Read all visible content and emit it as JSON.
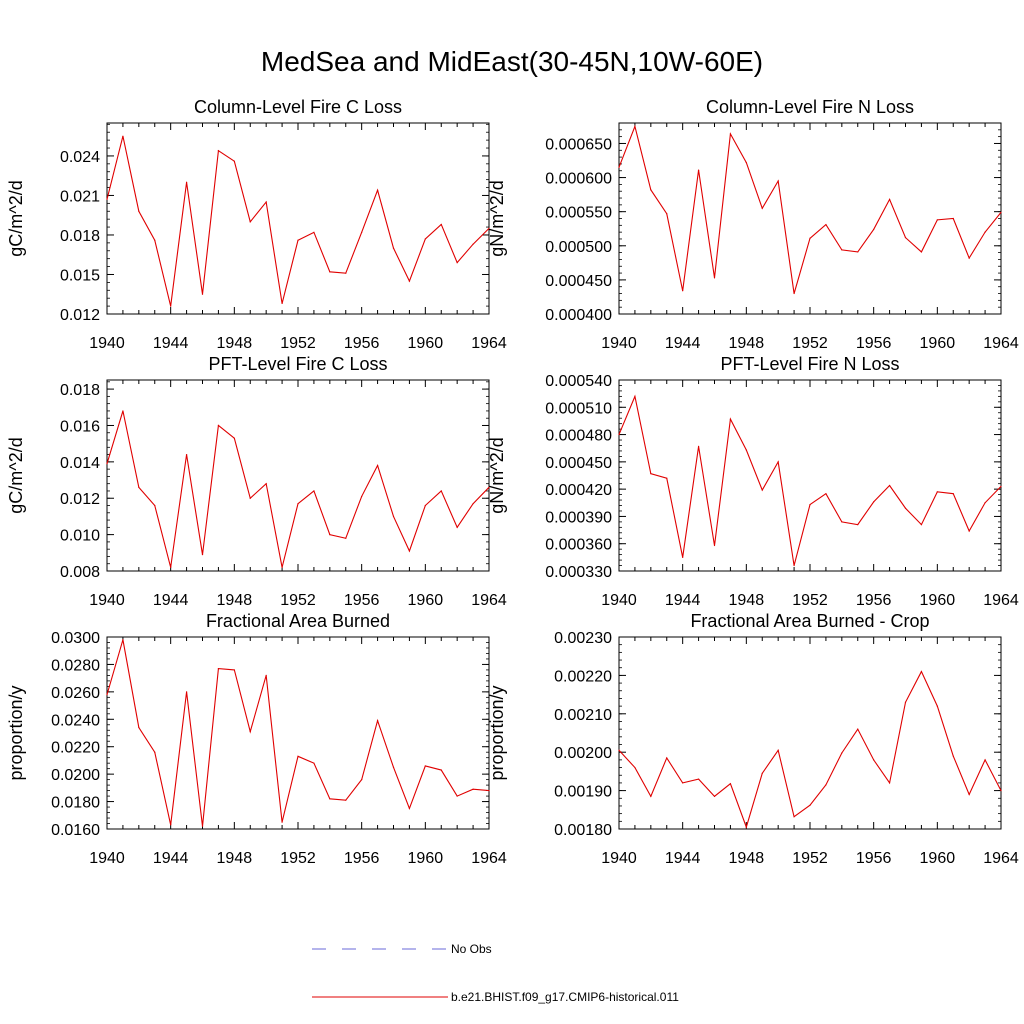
{
  "page": {
    "title": "MedSea and MidEast(30-45N,10W-60E)"
  },
  "legend": {
    "items": [
      {
        "label": "No Obs",
        "color": "#6a6ad8",
        "style": "dashed"
      },
      {
        "label": "b.e21.BHIST.f09_g17.CMIP6-historical.011",
        "color": "#e00000",
        "style": "solid"
      }
    ]
  },
  "chart_data": [
    {
      "type": "line",
      "title": "Column-Level Fire C Loss",
      "xlabel": "",
      "ylabel": "gC/m^2/d",
      "xlim": [
        1940,
        1964
      ],
      "ylim": [
        0.012,
        0.0265
      ],
      "xticks": [
        "1940",
        "1944",
        "1948",
        "1952",
        "1956",
        "1960",
        "1964"
      ],
      "yticks": [
        "0.012",
        "0.015",
        "0.018",
        "0.021",
        "0.024"
      ],
      "grid": false,
      "x": [
        1940,
        1941,
        1942,
        1943,
        1944,
        1945,
        1946,
        1947,
        1948,
        1949,
        1950,
        1951,
        1952,
        1953,
        1954,
        1955,
        1956,
        1957,
        1958,
        1959,
        1960,
        1961,
        1962,
        1963,
        1964
      ],
      "series": [
        {
          "name": "b.e21.BHIST.f09_g17.CMIP6-historical.011",
          "color": "#e00000",
          "values": [
            0.0207,
            0.0255,
            0.0198,
            0.0176,
            0.0126,
            0.022,
            0.0135,
            0.0244,
            0.0236,
            0.019,
            0.0205,
            0.0128,
            0.0176,
            0.0182,
            0.0152,
            0.0151,
            0.0182,
            0.0214,
            0.017,
            0.0145,
            0.0177,
            0.0188,
            0.0159,
            0.0173,
            0.0185
          ]
        }
      ]
    },
    {
      "type": "line",
      "title": "Column-Level Fire N Loss",
      "xlabel": "",
      "ylabel": "gN/m^2/d",
      "xlim": [
        1940,
        1964
      ],
      "ylim": [
        0.0004,
        0.00068
      ],
      "xticks": [
        "1940",
        "1944",
        "1948",
        "1952",
        "1956",
        "1960",
        "1964"
      ],
      "yticks": [
        "0.000400",
        "0.000450",
        "0.000500",
        "0.000550",
        "0.000600",
        "0.000650"
      ],
      "grid": false,
      "x": [
        1940,
        1941,
        1942,
        1943,
        1944,
        1945,
        1946,
        1947,
        1948,
        1949,
        1950,
        1951,
        1952,
        1953,
        1954,
        1955,
        1956,
        1957,
        1958,
        1959,
        1960,
        1961,
        1962,
        1963,
        1964
      ],
      "series": [
        {
          "name": "b.e21.BHIST.f09_g17.CMIP6-historical.011",
          "color": "#e00000",
          "values": [
            0.000615,
            0.000675,
            0.000582,
            0.000547,
            0.000434,
            0.000611,
            0.000453,
            0.000664,
            0.000622,
            0.000555,
            0.000595,
            0.00043,
            0.000511,
            0.000531,
            0.000494,
            0.000491,
            0.000524,
            0.000568,
            0.000512,
            0.000491,
            0.000538,
            0.00054,
            0.000482,
            0.00052,
            0.000549
          ]
        }
      ]
    },
    {
      "type": "line",
      "title": "PFT-Level Fire C Loss",
      "xlabel": "",
      "ylabel": "gC/m^2/d",
      "xlim": [
        1940,
        1964
      ],
      "ylim": [
        0.008,
        0.0185
      ],
      "xticks": [
        "1940",
        "1944",
        "1948",
        "1952",
        "1956",
        "1960",
        "1964"
      ],
      "yticks": [
        "0.008",
        "0.010",
        "0.012",
        "0.014",
        "0.016",
        "0.018"
      ],
      "grid": false,
      "x": [
        1940,
        1941,
        1942,
        1943,
        1944,
        1945,
        1946,
        1947,
        1948,
        1949,
        1950,
        1951,
        1952,
        1953,
        1954,
        1955,
        1956,
        1957,
        1958,
        1959,
        1960,
        1961,
        1962,
        1963,
        1964
      ],
      "series": [
        {
          "name": "b.e21.BHIST.f09_g17.CMIP6-historical.011",
          "color": "#e00000",
          "values": [
            0.0139,
            0.0168,
            0.0126,
            0.0116,
            0.0082,
            0.0144,
            0.0089,
            0.016,
            0.0153,
            0.012,
            0.0128,
            0.0082,
            0.0117,
            0.0124,
            0.01,
            0.0098,
            0.0121,
            0.0138,
            0.011,
            0.0091,
            0.0116,
            0.0124,
            0.0104,
            0.0117,
            0.0126
          ]
        }
      ]
    },
    {
      "type": "line",
      "title": "PFT-Level Fire N Loss",
      "xlabel": "",
      "ylabel": "gN/m^2/d",
      "xlim": [
        1940,
        1964
      ],
      "ylim": [
        0.00033,
        0.00054
      ],
      "xticks": [
        "1940",
        "1944",
        "1948",
        "1952",
        "1956",
        "1960",
        "1964"
      ],
      "yticks": [
        "0.000330",
        "0.000360",
        "0.000390",
        "0.000420",
        "0.000450",
        "0.000480",
        "0.000510",
        "0.000540"
      ],
      "grid": false,
      "x": [
        1940,
        1941,
        1942,
        1943,
        1944,
        1945,
        1946,
        1947,
        1948,
        1949,
        1950,
        1951,
        1952,
        1953,
        1954,
        1955,
        1956,
        1957,
        1958,
        1959,
        1960,
        1961,
        1962,
        1963,
        1964
      ],
      "series": [
        {
          "name": "b.e21.BHIST.f09_g17.CMIP6-historical.011",
          "color": "#e00000",
          "values": [
            0.00048,
            0.000522,
            0.000437,
            0.000432,
            0.000345,
            0.000467,
            0.000358,
            0.000497,
            0.000463,
            0.000419,
            0.00045,
            0.000336,
            0.000403,
            0.000415,
            0.000384,
            0.000381,
            0.000406,
            0.000424,
            0.000399,
            0.000381,
            0.000417,
            0.000415,
            0.000374,
            0.000405,
            0.000423
          ]
        }
      ]
    },
    {
      "type": "line",
      "title": "Fractional Area Burned",
      "xlabel": "",
      "ylabel": "proportion/y",
      "xlim": [
        1940,
        1964
      ],
      "ylim": [
        0.016,
        0.03
      ],
      "xticks": [
        "1940",
        "1944",
        "1948",
        "1952",
        "1956",
        "1960",
        "1964"
      ],
      "yticks": [
        "0.0160",
        "0.0180",
        "0.0200",
        "0.0220",
        "0.0240",
        "0.0260",
        "0.0280",
        "0.0300"
      ],
      "grid": false,
      "x": [
        1940,
        1941,
        1942,
        1943,
        1944,
        1945,
        1946,
        1947,
        1948,
        1949,
        1950,
        1951,
        1952,
        1953,
        1954,
        1955,
        1956,
        1957,
        1958,
        1959,
        1960,
        1961,
        1962,
        1963,
        1964
      ],
      "series": [
        {
          "name": "b.e21.BHIST.f09_g17.CMIP6-historical.011",
          "color": "#e00000",
          "values": [
            0.0258,
            0.0298,
            0.0234,
            0.0216,
            0.0163,
            0.026,
            0.0162,
            0.0277,
            0.0276,
            0.0231,
            0.0272,
            0.0165,
            0.0213,
            0.0208,
            0.0182,
            0.0181,
            0.0196,
            0.0239,
            0.0205,
            0.0175,
            0.0206,
            0.0203,
            0.0184,
            0.0189,
            0.0188
          ]
        }
      ]
    },
    {
      "type": "line",
      "title": "Fractional Area Burned - Crop",
      "xlabel": "",
      "ylabel": "proportion/y",
      "xlim": [
        1940,
        1964
      ],
      "ylim": [
        0.0018,
        0.0023
      ],
      "xticks": [
        "1940",
        "1944",
        "1948",
        "1952",
        "1956",
        "1960",
        "1964"
      ],
      "yticks": [
        "0.00180",
        "0.00190",
        "0.00200",
        "0.00210",
        "0.00220",
        "0.00230"
      ],
      "grid": false,
      "x": [
        1940,
        1941,
        1942,
        1943,
        1944,
        1945,
        1946,
        1947,
        1948,
        1949,
        1950,
        1951,
        1952,
        1953,
        1954,
        1955,
        1956,
        1957,
        1958,
        1959,
        1960,
        1961,
        1962,
        1963,
        1964
      ],
      "series": [
        {
          "name": "b.e21.BHIST.f09_g17.CMIP6-historical.011",
          "color": "#e00000",
          "values": [
            0.002005,
            0.00196,
            0.001885,
            0.001985,
            0.00192,
            0.00193,
            0.001885,
            0.001918,
            0.001805,
            0.001945,
            0.002005,
            0.001832,
            0.001862,
            0.001915,
            0.001998,
            0.00206,
            0.00198,
            0.00192,
            0.00213,
            0.00221,
            0.00212,
            0.00199,
            0.00189,
            0.00198,
            0.0019
          ]
        }
      ]
    }
  ]
}
